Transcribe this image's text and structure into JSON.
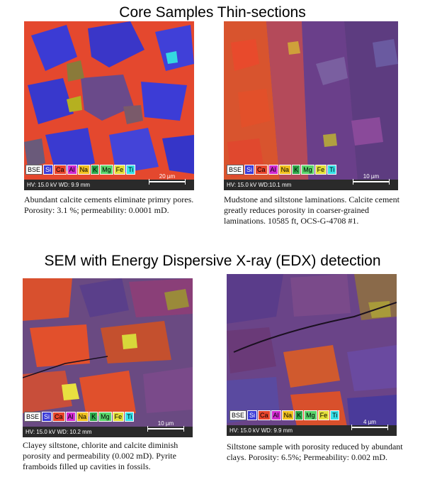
{
  "headings": {
    "top": "Core Samples Thin-sections",
    "middle": "SEM with Energy Dispersive X-ray (EDX) detection"
  },
  "legend": {
    "chips": [
      {
        "label": "BSE",
        "color": "#ffffff"
      },
      {
        "label": "Si",
        "color": "#3a3ad8"
      },
      {
        "label": "Ca",
        "color": "#e8452c"
      },
      {
        "label": "Al",
        "color": "#d12ad1"
      },
      {
        "label": "Na",
        "color": "#f0c020"
      },
      {
        "label": "K",
        "color": "#2fa84a"
      },
      {
        "label": "Mg",
        "color": "#59d46a"
      },
      {
        "label": "Fe",
        "color": "#e4e03a"
      },
      {
        "label": "Ti",
        "color": "#35e0e8"
      }
    ]
  },
  "panels": [
    {
      "meta": "HV: 15.0 kV  WD: 9.9 mm",
      "scale": "20 µm",
      "caption": "Abundant calcite cements eliminate primry pores. Porosity: 3.1 %; permeability: 0.0001 mD."
    },
    {
      "meta": "HV: 15.0 kV  WD:10.1 mm",
      "scale": "10 µm",
      "caption": "Mudstone and siltstone laminations. Calcite cement greatly reduces porosity in coarser-grained laminations. 10585 ft, OCS-G-4708 #1."
    },
    {
      "meta": "HV: 15.0 kV  WD: 10.2 mm",
      "scale": "10 µm",
      "caption": "Clayey siltstone, chlorite and calcite diminish porosity and permeability (0.002 mD). Pyrite framboids filled up cavities in fossils."
    },
    {
      "meta": "HV: 15.0 kV  WD: 9.9 mm",
      "scale": "4 µm",
      "caption": "Siltstone sample with porosity reduced by abundant clays. Porosity: 6.5%; Permeability: 0.002 mD."
    }
  ]
}
